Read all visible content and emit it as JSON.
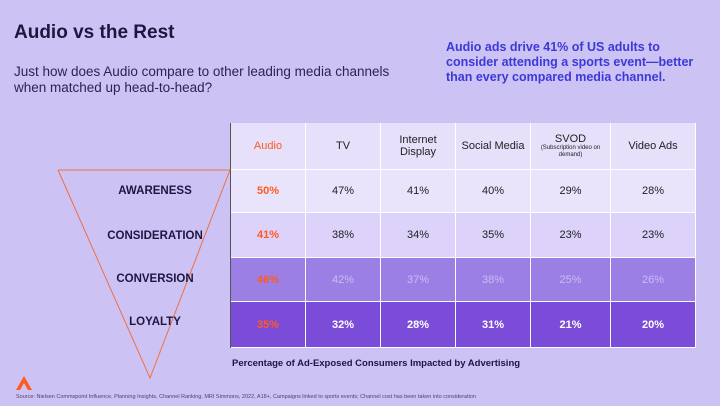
{
  "header": {
    "title": "Audio vs the Rest",
    "subtitle": "Just how does Audio compare to other leading media channels when matched up head-to-head?",
    "callout": "Audio ads drive 41% of US adults to consider attending a sports event—better than every compared media channel."
  },
  "table": {
    "columns": [
      "Audio",
      "TV",
      "Internet Display",
      "Social Media",
      "SVOD",
      "Video Ads"
    ],
    "column_note": "(Subscription video on demand)",
    "rows": [
      {
        "label": "AWARENESS",
        "cells": [
          "50%",
          "47%",
          "41%",
          "40%",
          "29%",
          "28%"
        ]
      },
      {
        "label": "CONSIDERATION",
        "cells": [
          "41%",
          "38%",
          "34%",
          "35%",
          "23%",
          "23%"
        ]
      },
      {
        "label": "CONVERSION",
        "cells": [
          "46%",
          "42%",
          "37%",
          "38%",
          "25%",
          "26%"
        ]
      },
      {
        "label": "LOYALTY",
        "cells": [
          "35%",
          "32%",
          "28%",
          "31%",
          "21%",
          "20%"
        ]
      }
    ],
    "caption": "Percentage of  Ad-Exposed Consumers Impacted by Advertising"
  },
  "footer": {
    "source": "Source: Nielsen Commspoint Influence, Planning Insights, Channel Ranking, MRI Simmons, 2022, A18+, Campaigns linked to sports events; Channel cost has been taken into consideration"
  }
}
